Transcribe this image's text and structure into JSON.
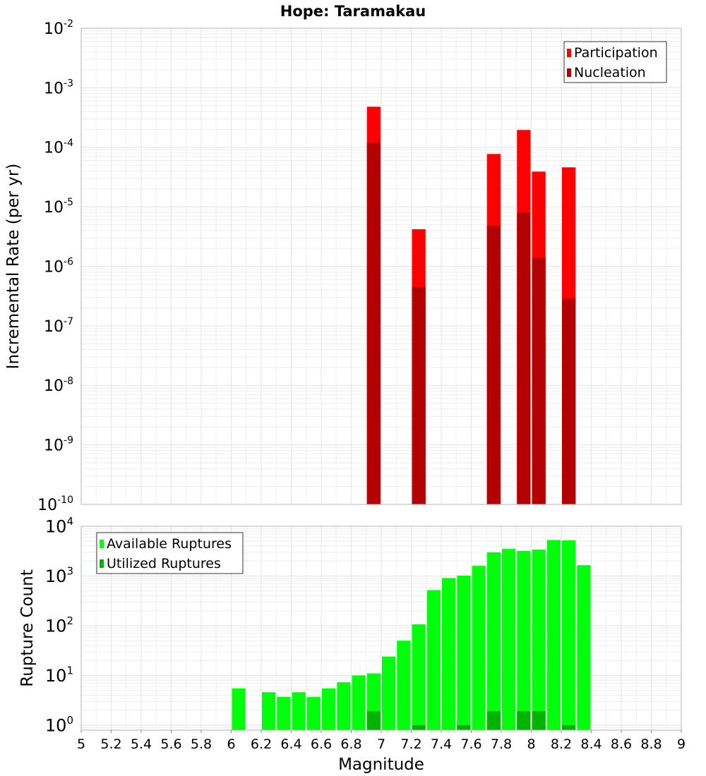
{
  "chart_data": {
    "type": "bar",
    "title": "Hope: Taramakau",
    "xlabel": "Magnitude",
    "xlim": [
      5,
      9
    ],
    "x_ticks": [
      "5",
      "5.2",
      "5.4",
      "5.6",
      "5.8",
      "6",
      "6.2",
      "6.4",
      "6.6",
      "6.8",
      "7",
      "7.2",
      "7.4",
      "7.6",
      "7.8",
      "8",
      "8.2",
      "8.4",
      "8.6",
      "8.8",
      "9"
    ],
    "bin_width": 0.1,
    "panels": [
      {
        "id": "rates",
        "ylabel": "Incremental Rate (per yr)",
        "yscale": "log",
        "ylim_exp": [
          -10,
          -2
        ],
        "y_ticks": [
          {
            "base": "10",
            "exp": "-2"
          },
          {
            "base": "10",
            "exp": "-3"
          },
          {
            "base": "10",
            "exp": "-4"
          },
          {
            "base": "10",
            "exp": "-5"
          },
          {
            "base": "10",
            "exp": "-6"
          },
          {
            "base": "10",
            "exp": "-7"
          },
          {
            "base": "10",
            "exp": "-8"
          },
          {
            "base": "10",
            "exp": "-9"
          },
          {
            "base": "10",
            "exp": "-10"
          }
        ],
        "legend_position": "top-right",
        "series": [
          {
            "name": "Participation",
            "color": "#ff0000",
            "points": [
              [
                6.95,
                0.00048
              ],
              [
                7.25,
                4.2e-06
              ],
              [
                7.75,
                7.7e-05
              ],
              [
                7.95,
                0.000195
              ],
              [
                8.05,
                3.9e-05
              ],
              [
                8.25,
                4.6e-05
              ]
            ]
          },
          {
            "name": "Nucleation",
            "color": "#b30000",
            "points": [
              [
                6.95,
                0.00012
              ],
              [
                7.25,
                4.5e-07
              ],
              [
                7.75,
                4.8e-06
              ],
              [
                7.95,
                8e-06
              ],
              [
                8.05,
                1.4e-06
              ],
              [
                8.25,
                2.9e-07
              ]
            ]
          }
        ]
      },
      {
        "id": "counts",
        "ylabel": "Rupture Count",
        "yscale": "log",
        "ylim_exp": [
          -0.1,
          4
        ],
        "y_ticks": [
          {
            "base": "10",
            "exp": "4"
          },
          {
            "base": "10",
            "exp": "3"
          },
          {
            "base": "10",
            "exp": "2"
          },
          {
            "base": "10",
            "exp": "1"
          },
          {
            "base": "10",
            "exp": "0"
          }
        ],
        "legend_position": "top-left",
        "series": [
          {
            "name": "Available Ruptures",
            "color": "#00ff0a",
            "points": [
              [
                6.05,
                5.5
              ],
              [
                6.25,
                4.6
              ],
              [
                6.35,
                3.7
              ],
              [
                6.45,
                4.6
              ],
              [
                6.55,
                3.7
              ],
              [
                6.65,
                5.5
              ],
              [
                6.75,
                7.3
              ],
              [
                6.85,
                10
              ],
              [
                6.95,
                11
              ],
              [
                7.05,
                24
              ],
              [
                7.15,
                50
              ],
              [
                7.25,
                107
              ],
              [
                7.35,
                520
              ],
              [
                7.45,
                910
              ],
              [
                7.55,
                1020
              ],
              [
                7.65,
                1600
              ],
              [
                7.75,
                3000
              ],
              [
                7.85,
                3500
              ],
              [
                7.95,
                3200
              ],
              [
                8.05,
                3400
              ],
              [
                8.15,
                5300
              ],
              [
                8.25,
                5200
              ],
              [
                8.35,
                1650
              ]
            ]
          },
          {
            "name": "Utilized Ruptures",
            "color": "#00b300",
            "points": [
              [
                6.95,
                1.9
              ],
              [
                7.25,
                1.0
              ],
              [
                7.55,
                1.0
              ],
              [
                7.75,
                1.9
              ],
              [
                7.95,
                1.9
              ],
              [
                8.05,
                1.9
              ],
              [
                8.25,
                1.0
              ]
            ]
          }
        ]
      }
    ]
  }
}
